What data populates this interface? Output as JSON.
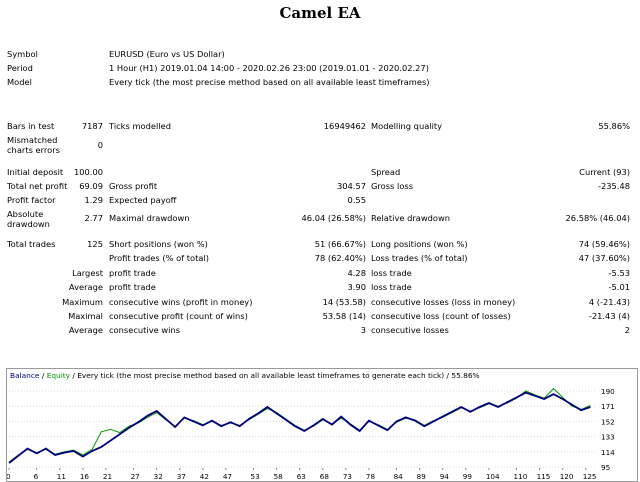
{
  "title": "Camel EA",
  "info": {
    "symbol_label": "Symbol",
    "symbol_value": "EURUSD (Euro vs US Dollar)",
    "period_label": "Period",
    "period_value": "1 Hour (H1) 2019.01.04 14:00 - 2020.02.26 23:00 (2019.01.01 - 2020.02.27)",
    "model_label": "Model",
    "model_value": "Every tick (the most precise method based on all available least timeframes)"
  },
  "stats": {
    "bars_label": "Bars in test",
    "bars_value": "7187",
    "ticks_label": "Ticks modelled",
    "ticks_value": "16949462",
    "quality_label": "Modelling quality",
    "quality_value": "55.86%",
    "mismatch_label_1": "Mismatched",
    "mismatch_label_2": "charts errors",
    "mismatch_value": "0",
    "deposit_label": "Initial deposit",
    "deposit_value": "100.00",
    "spread_label": "Spread",
    "spread_value": "Current (93)",
    "net_label": "Total net profit",
    "net_value": "69.09",
    "gross_profit_label": "Gross profit",
    "gross_profit_value": "304.57",
    "gross_loss_label": "Gross loss",
    "gross_loss_value": "-235.48",
    "pf_label": "Profit factor",
    "pf_value": "1.29",
    "ep_label": "Expected payoff",
    "ep_value": "0.55",
    "absdd_label_1": "Absolute",
    "absdd_label_2": "drawdown",
    "absdd_value": "2.77",
    "maxdd_label": "Maximal drawdown",
    "maxdd_value": "46.04 (26.58%)",
    "reldd_label": "Relative drawdown",
    "reldd_value": "26.58% (46.04)",
    "trades_label": "Total trades",
    "trades_value": "125",
    "short_label": "Short positions (won %)",
    "short_value": "51 (66.67%)",
    "long_label": "Long positions (won %)",
    "long_value": "74 (59.46%)",
    "pt_label": "Profit trades (% of total)",
    "pt_value": "78 (62.40%)",
    "lt_label": "Loss trades (% of total)",
    "lt_value": "47 (37.60%)",
    "largest_label": "Largest",
    "l_profit_label": "profit trade",
    "l_profit_value": "4.28",
    "l_loss_label": "loss trade",
    "l_loss_value": "-5.53",
    "average_label": "Average",
    "a_profit_label": "profit trade",
    "a_profit_value": "3.90",
    "a_loss_label": "loss trade",
    "a_loss_value": "-5.01",
    "maximum_label": "Maximum",
    "mx_wins_label": "consecutive wins (profit in money)",
    "mx_wins_value": "14 (53.58)",
    "mx_losses_label": "consecutive losses (loss in money)",
    "mx_losses_value": "4 (-21.43)",
    "maximal_label": "Maximal",
    "ml_profit_label": "consecutive profit (count of wins)",
    "ml_profit_value": "53.58 (14)",
    "ml_loss_label": "consecutive loss (count of losses)",
    "ml_loss_value": "-21.43 (4)",
    "average2_label": "Average",
    "av_wins_label": "consecutive wins",
    "av_wins_value": "3",
    "av_losses_label": "consecutive losses",
    "av_losses_value": "2"
  },
  "chart_legend": {
    "balance": "Balance",
    "sep1": " / ",
    "equity": "Equity",
    "rest": " / Every tick (the most precise method based on all available least timeframes to generate each tick) / 55.86%"
  },
  "colors": {
    "balance": "#00007f",
    "equity": "#009900"
  },
  "chart_data": {
    "type": "line",
    "yticks": [
      95,
      114,
      133,
      152,
      171,
      190
    ],
    "xticks": [
      0,
      6,
      11,
      16,
      21,
      27,
      32,
      37,
      42,
      47,
      53,
      58,
      63,
      68,
      73,
      78,
      84,
      89,
      94,
      99,
      104,
      110,
      115,
      120,
      125
    ],
    "ylim": [
      95,
      200
    ],
    "xlim": [
      0,
      127
    ],
    "series": [
      {
        "name": "Balance",
        "x": [
          0,
          2,
          4,
          6,
          8,
          10,
          12,
          14,
          16,
          18,
          20,
          22,
          24,
          26,
          28,
          30,
          32,
          34,
          36,
          38,
          40,
          42,
          44,
          46,
          48,
          50,
          52,
          54,
          56,
          58,
          60,
          62,
          64,
          66,
          68,
          70,
          72,
          74,
          76,
          78,
          80,
          82,
          84,
          86,
          88,
          90,
          92,
          94,
          96,
          98,
          100,
          102,
          104,
          106,
          108,
          110,
          112,
          114,
          116,
          118,
          120,
          122,
          124,
          126
        ],
        "y": [
          100,
          109,
          118,
          112,
          118,
          110,
          113,
          115,
          108,
          115,
          120,
          128,
          136,
          144,
          151,
          159,
          165,
          155,
          145,
          157,
          152,
          147,
          153,
          146,
          151,
          146,
          155,
          162,
          170,
          162,
          154,
          146,
          140,
          147,
          155,
          148,
          158,
          148,
          140,
          153,
          147,
          141,
          152,
          157,
          153,
          146,
          152,
          158,
          164,
          170,
          164,
          170,
          175,
          170,
          176,
          182,
          188,
          184,
          180,
          186,
          180,
          173,
          166,
          170
        ]
      },
      {
        "name": "Equity",
        "x": [
          0,
          2,
          4,
          6,
          8,
          10,
          12,
          14,
          16,
          18,
          20,
          22,
          24,
          26,
          28,
          30,
          32,
          34,
          36,
          38,
          40,
          42,
          44,
          46,
          48,
          50,
          52,
          54,
          56,
          58,
          60,
          62,
          64,
          66,
          68,
          70,
          72,
          74,
          76,
          78,
          80,
          82,
          84,
          86,
          88,
          90,
          92,
          94,
          96,
          98,
          100,
          102,
          104,
          106,
          108,
          110,
          112,
          114,
          116,
          118,
          120,
          122,
          124,
          126
        ],
        "y": [
          101,
          110,
          117,
          113,
          117,
          111,
          114,
          116,
          110,
          117,
          139,
          142,
          138,
          146,
          150,
          157,
          163,
          154,
          146,
          156,
          153,
          148,
          152,
          147,
          150,
          147,
          154,
          161,
          168,
          163,
          155,
          147,
          141,
          146,
          154,
          149,
          156,
          149,
          141,
          152,
          148,
          142,
          151,
          156,
          154,
          147,
          153,
          157,
          163,
          169,
          165,
          169,
          174,
          171,
          175,
          181,
          190,
          185,
          181,
          193,
          182,
          171,
          167,
          172
        ]
      }
    ]
  }
}
